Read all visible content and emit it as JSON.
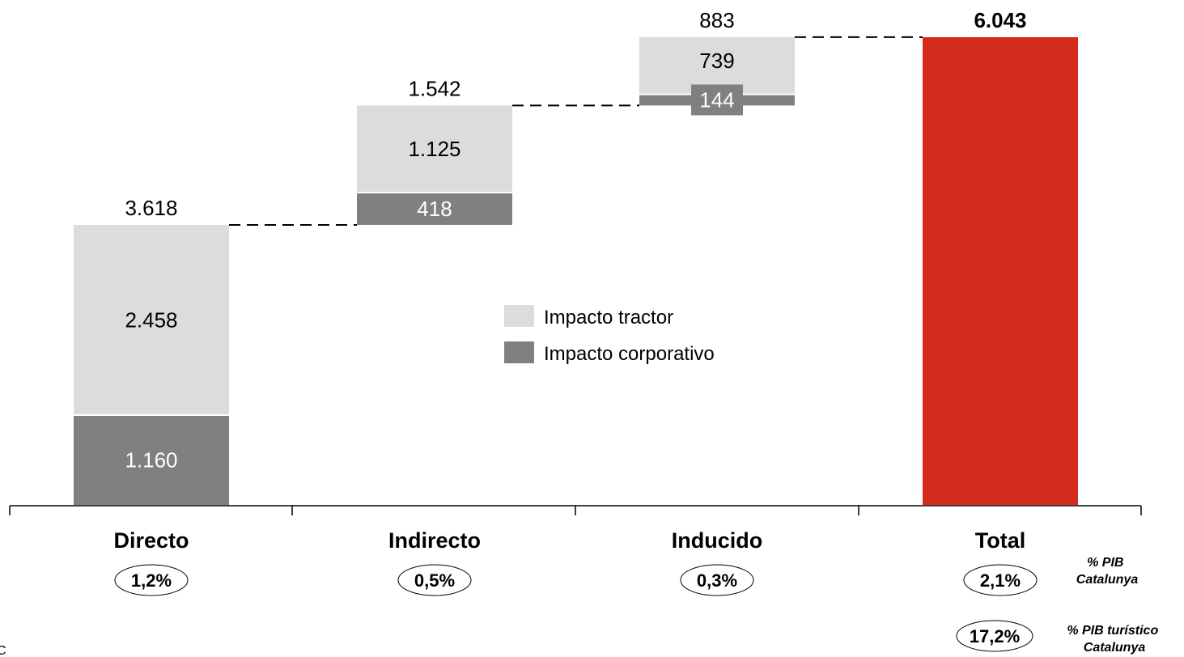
{
  "chart_data": {
    "type": "bar",
    "subtype": "waterfall",
    "categories": [
      "Directo",
      "Indirecto",
      "Inducido",
      "Total"
    ],
    "series": [
      {
        "name": "Impacto corporativo",
        "values": [
          1160,
          418,
          144,
          null
        ]
      },
      {
        "name": "Impacto tractor",
        "values": [
          2458,
          1125,
          739,
          null
        ]
      }
    ],
    "segment_labels": {
      "corporativo": [
        "1.160",
        "418",
        "144",
        ""
      ],
      "tractor": [
        "2.458",
        "1.125",
        "739",
        ""
      ]
    },
    "totals": [
      3618,
      1542,
      883,
      6043
    ],
    "total_labels": [
      "3.618",
      "1.542",
      "883",
      "6.043"
    ],
    "pib_pct": [
      "1,2%",
      "0,5%",
      "0,3%",
      "2,1%"
    ],
    "pib_turistico_pct": "17,2%",
    "pib_note": "% PIB Catalunya",
    "pib_turistico_note": "% PIB turístico Catalunya",
    "ylim": [
      0,
      6043
    ],
    "legend_position": "center",
    "grid": false,
    "xlabel": "",
    "ylabel": ""
  },
  "colors": {
    "tractor": "#dcdcdc",
    "corporativo": "#808080",
    "total": "#d52b1e",
    "axis": "#000000",
    "text": "#000000",
    "inner_dark_text": "#ffffff"
  },
  "footnote": "C"
}
